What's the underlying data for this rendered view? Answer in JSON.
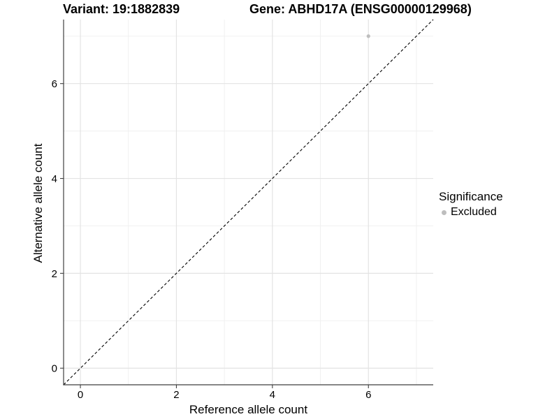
{
  "header": {
    "variant_title": "Variant: 19:1882839",
    "gene_title": "Gene: ABHD17A (ENSG00000129968)"
  },
  "legend": {
    "title": "Significance",
    "items": [
      {
        "label": "Excluded",
        "color": "#bebebe"
      }
    ]
  },
  "chart_data": {
    "type": "scatter",
    "title": "Variant: 19:1882839  Gene: ABHD17A (ENSG00000129968)",
    "xlabel": "Reference allele count",
    "ylabel": "Alternative allele count",
    "xlim": [
      -0.35,
      7.35
    ],
    "ylim": [
      -0.35,
      7.35
    ],
    "x_major_ticks": [
      0,
      2,
      4,
      6
    ],
    "y_major_ticks": [
      0,
      2,
      4,
      6
    ],
    "x_minor_ticks": [
      1,
      3,
      5,
      7
    ],
    "y_minor_ticks": [
      1,
      3,
      5,
      7
    ],
    "grid": true,
    "legend_position": "right",
    "series": [
      {
        "name": "Excluded",
        "color": "#bebebe",
        "points": [
          {
            "x": 6,
            "y": 7
          }
        ]
      }
    ],
    "reference_line": {
      "kind": "identity",
      "equation": "y = x",
      "style": "dashed",
      "color": "#000000"
    },
    "colors": {
      "background": "#ffffff",
      "grid_major": "#e3e3e3",
      "grid_minor": "#efefef",
      "axis_line": "#3f3f3f",
      "tick_mark": "#3f3f3f",
      "tick_text": "#000000",
      "point_excluded": "#bebebe"
    }
  }
}
